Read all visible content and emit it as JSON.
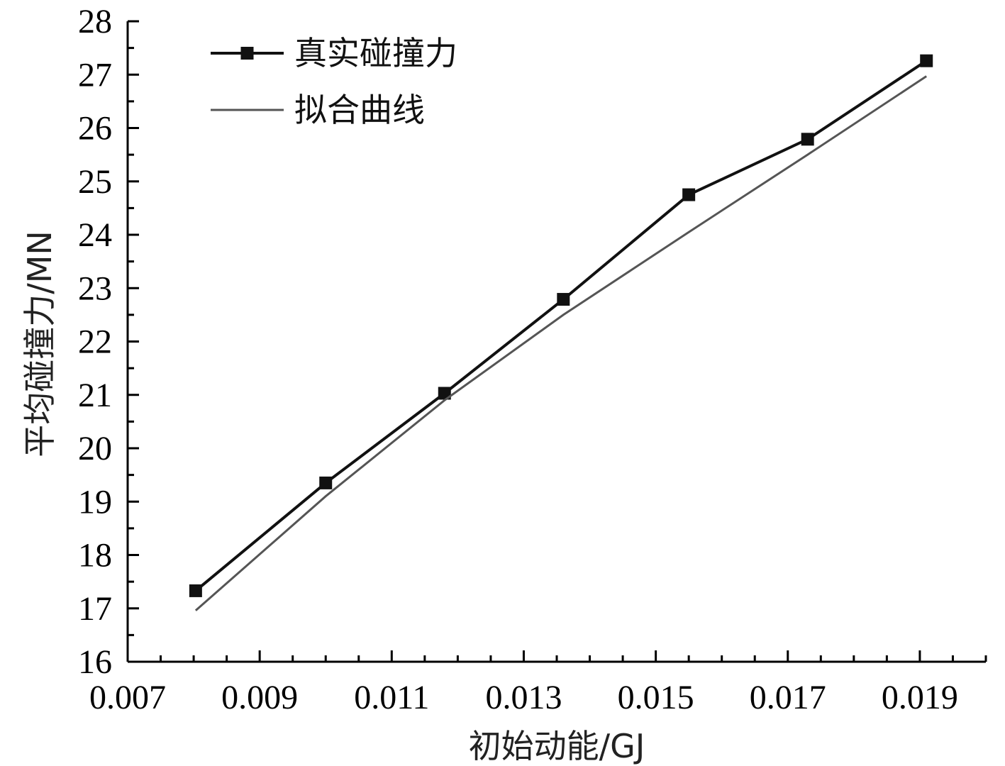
{
  "chart_data": {
    "type": "line",
    "xlabel": "初始动能/GJ",
    "ylabel": "平均碰撞力/MN",
    "xlim": [
      0.007,
      0.02
    ],
    "ylim": [
      16,
      28
    ],
    "x_ticks": [
      "0.007",
      "0.009",
      "0.011",
      "0.013",
      "0.015",
      "0.017",
      "0.019"
    ],
    "y_ticks": [
      "16",
      "17",
      "18",
      "19",
      "20",
      "21",
      "22",
      "23",
      "24",
      "25",
      "26",
      "27",
      "28"
    ],
    "legend_position": "top-left",
    "grid": false,
    "series": [
      {
        "name": "真实碰撞力",
        "color": "#111111",
        "marker": "square",
        "x": [
          0.00803,
          0.01,
          0.0118,
          0.0136,
          0.0155,
          0.0173,
          0.0191
        ],
        "y": [
          17.33,
          19.35,
          21.03,
          22.79,
          24.75,
          25.79,
          27.26
        ]
      },
      {
        "name": "拟合曲线",
        "color": "#555555",
        "marker": "none",
        "x": [
          0.00803,
          0.01,
          0.0118,
          0.0136,
          0.0155,
          0.0173,
          0.0191
        ],
        "y": [
          16.96,
          19.1,
          20.9,
          22.5,
          24.05,
          25.5,
          26.97
        ]
      }
    ]
  }
}
